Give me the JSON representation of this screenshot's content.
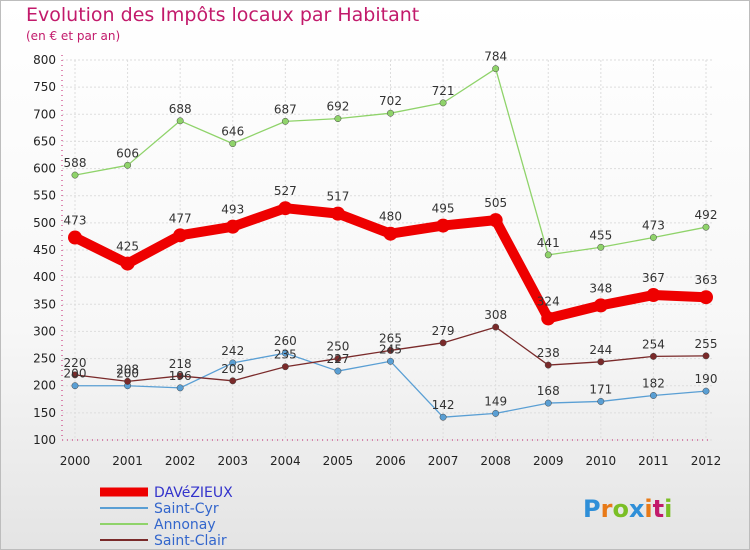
{
  "title": "Evolution des Impôts locaux par Habitant",
  "subtitle": "(en € et par an)",
  "logo": {
    "letters": [
      "P",
      "r",
      "o",
      "x",
      "i",
      "t",
      "i"
    ],
    "colors": [
      "#2f8fd8",
      "#e87a18",
      "#7bbf26",
      "#2f8fd8",
      "#e87a18",
      "#c21a6b",
      "#7bbf26"
    ]
  },
  "chart_data": {
    "type": "line",
    "x": [
      "2000",
      "2001",
      "2002",
      "2003",
      "2004",
      "2005",
      "2006",
      "2007",
      "2008",
      "2009",
      "2010",
      "2011",
      "2012"
    ],
    "ylim": [
      100,
      800
    ],
    "yticks": [
      "100",
      "150",
      "200",
      "250",
      "300",
      "350",
      "400",
      "450",
      "500",
      "550",
      "600",
      "650",
      "700",
      "750",
      "800"
    ],
    "grid": true,
    "legend": "bottom-left",
    "series": [
      {
        "name": "DAVéZIEUX",
        "color": "#ee0000",
        "values": [
          473,
          425,
          477,
          493,
          527,
          517,
          480,
          495,
          505,
          324,
          348,
          367,
          363
        ]
      },
      {
        "name": "Saint-Cyr",
        "color": "#5a9fd4",
        "values": [
          200,
          200,
          196,
          242,
          260,
          227,
          245,
          142,
          149,
          168,
          171,
          182,
          190
        ]
      },
      {
        "name": "Annonay",
        "color": "#8fd36a",
        "values": [
          588,
          606,
          688,
          646,
          687,
          692,
          702,
          721,
          784,
          441,
          455,
          473,
          492
        ]
      },
      {
        "name": "Saint-Clair",
        "color": "#7a2a2a",
        "values": [
          220,
          208,
          218,
          209,
          235,
          250,
          265,
          279,
          308,
          238,
          244,
          254,
          255
        ]
      }
    ],
    "point_labels": [
      [
        "473",
        "425",
        "477",
        "493",
        "527",
        "517",
        "480",
        "495",
        "505",
        "324",
        "348",
        "367",
        "363"
      ],
      [
        "200",
        "200",
        "196",
        "242",
        "260",
        "227",
        "245",
        "142",
        "149",
        "168",
        "171",
        "182",
        "190"
      ],
      [
        "588",
        "606",
        "688",
        "646",
        "687",
        "692",
        "702",
        "721",
        "784",
        "441",
        "455",
        "473",
        "492"
      ],
      [
        "220",
        "208",
        "218",
        "209",
        "235",
        "250",
        "265",
        "279",
        "308",
        "238",
        "244",
        "254",
        "255"
      ]
    ]
  }
}
